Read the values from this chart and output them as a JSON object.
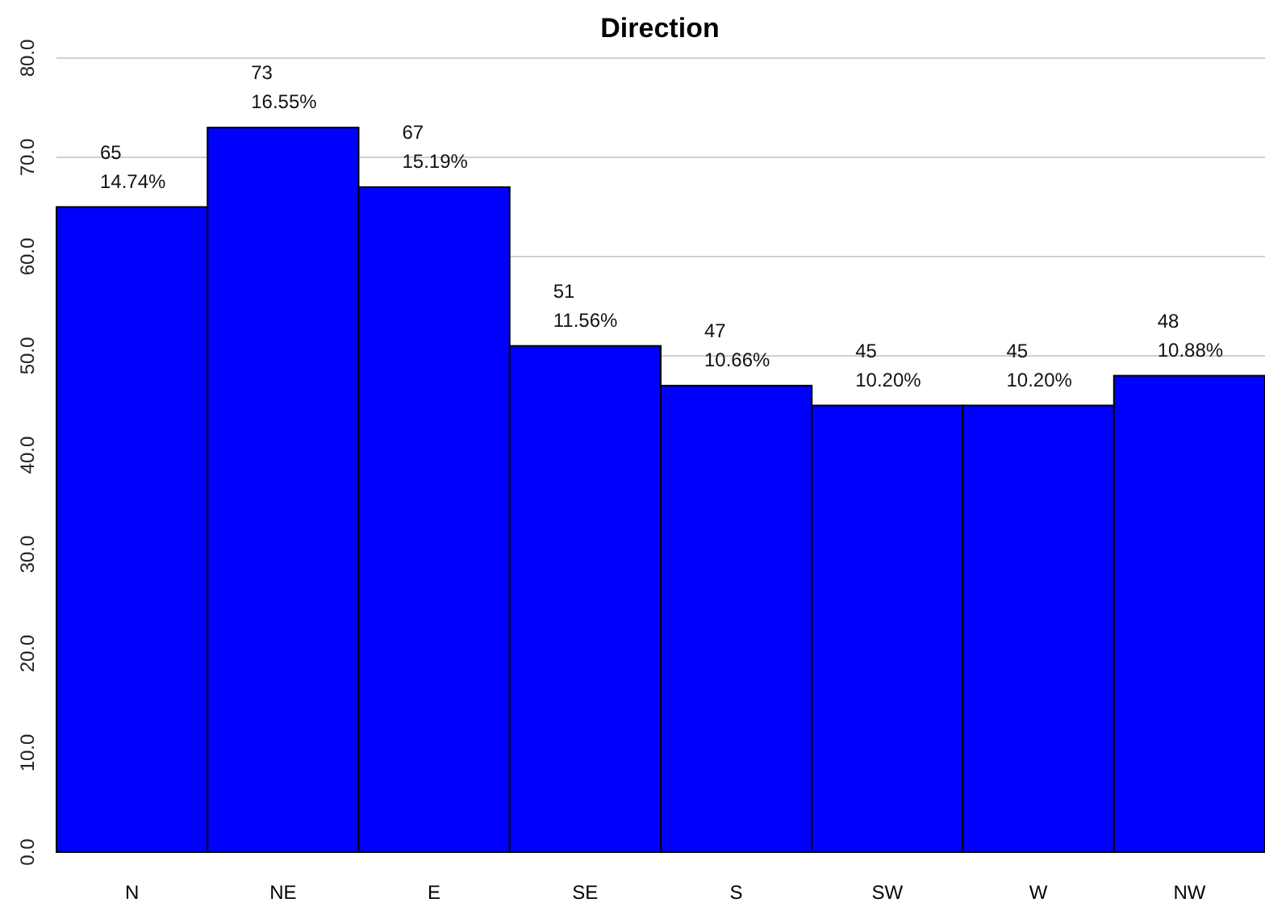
{
  "chart_data": {
    "type": "bar",
    "title": "Direction",
    "categories": [
      "N",
      "NE",
      "E",
      "SE",
      "S",
      "SW",
      "W",
      "NW"
    ],
    "values": [
      65,
      73,
      67,
      51,
      47,
      45,
      45,
      48
    ],
    "value_labels": [
      "65\n14.74%",
      "73\n16.55%",
      "67\n15.19%",
      "51\n11.56%",
      "47\n10.66%",
      "45\n10.20%",
      "45\n10.20%",
      "48\n10.88%"
    ],
    "color": "#0000ff",
    "ylim": [
      0,
      80
    ],
    "yticks": [
      {
        "value": 0,
        "label": "0.0"
      },
      {
        "value": 10,
        "label": "10.0"
      },
      {
        "value": 20,
        "label": "20.0"
      },
      {
        "value": 30,
        "label": "30.0"
      },
      {
        "value": 40,
        "label": "40.0"
      },
      {
        "value": 50,
        "label": "50.0"
      },
      {
        "value": 60,
        "label": "60.0"
      },
      {
        "value": 70,
        "label": "70.0"
      },
      {
        "value": 80,
        "label": "80.0"
      }
    ],
    "grid": "y"
  }
}
